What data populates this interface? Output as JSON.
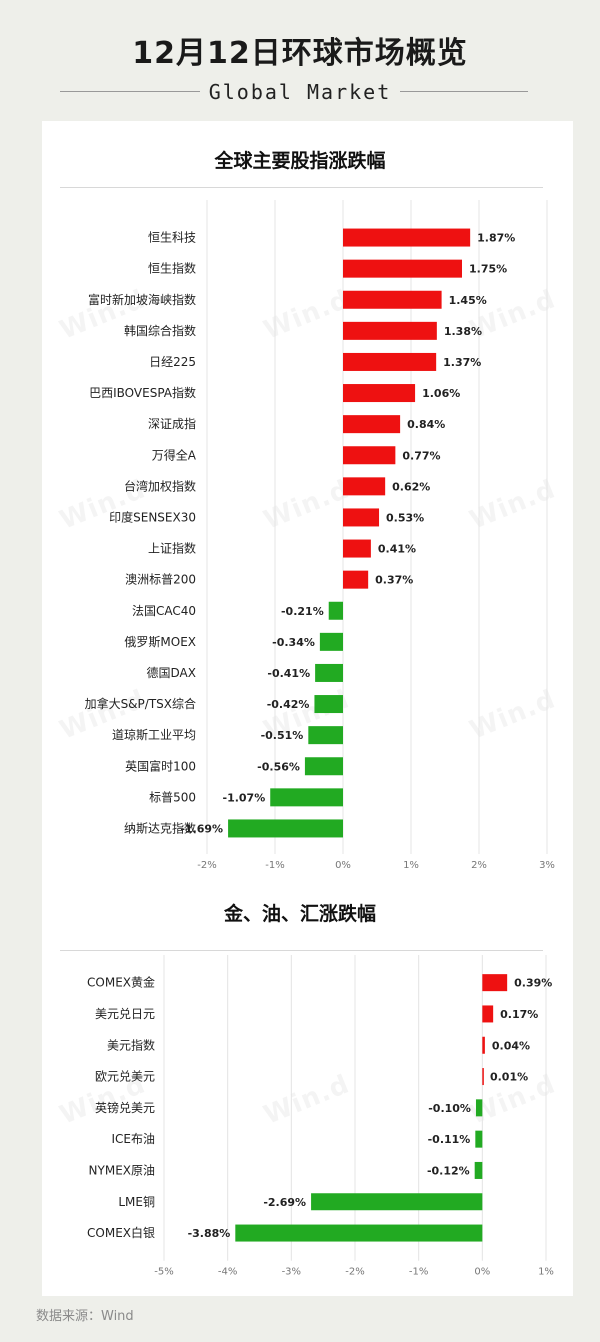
{
  "header": {
    "title": "12月12日环球市场概览",
    "subtitle": "Global Market"
  },
  "sections": {
    "stocks_title": "全球主要股指涨跌幅",
    "commodities_title": "金、油、汇涨跌幅"
  },
  "watermark": "Win.d",
  "source": "数据来源：Wind",
  "colors": {
    "up": "#ee1111",
    "down": "#22aa22",
    "background": "#eeefea",
    "card": "#ffffff"
  },
  "chart_data": [
    {
      "type": "bar",
      "orientation": "horizontal",
      "title": "全球主要股指涨跌幅",
      "categories": [
        "恒生科技",
        "恒生指数",
        "富时新加坡海峡指数",
        "韩国综合指数",
        "日经225",
        "巴西IBOVESPA指数",
        "深证成指",
        "万得全A",
        "台湾加权指数",
        "印度SENSEX30",
        "上证指数",
        "澳洲标普200",
        "法国CAC40",
        "俄罗斯MOEX",
        "德国DAX",
        "加拿大S&P/TSX综合",
        "道琼斯工业平均",
        "英国富时100",
        "标普500",
        "纳斯达克指数"
      ],
      "values": [
        1.87,
        1.75,
        1.45,
        1.38,
        1.37,
        1.06,
        0.84,
        0.77,
        0.62,
        0.53,
        0.41,
        0.37,
        -0.21,
        -0.34,
        -0.41,
        -0.42,
        -0.51,
        -0.56,
        -1.07,
        -1.69
      ],
      "value_labels": [
        "1.87%",
        "1.75%",
        "1.45%",
        "1.38%",
        "1.37%",
        "1.06%",
        "0.84%",
        "0.77%",
        "0.62%",
        "0.53%",
        "0.41%",
        "0.37%",
        "-0.21%",
        "-0.34%",
        "-0.41%",
        "-0.42%",
        "-0.51%",
        "-0.56%",
        "-1.07%",
        "-1.69%"
      ],
      "xlim": [
        -2,
        3
      ],
      "ticks": [
        "-2%",
        "-1%",
        "0%",
        "1%",
        "2%",
        "3%"
      ],
      "grid": true
    },
    {
      "type": "bar",
      "orientation": "horizontal",
      "title": "金、油、汇涨跌幅",
      "categories": [
        "COMEX黄金",
        "美元兑日元",
        "美元指数",
        "欧元兑美元",
        "英镑兑美元",
        "ICE布油",
        "NYMEX原油",
        "LME铜",
        "COMEX白银"
      ],
      "values": [
        0.39,
        0.17,
        0.04,
        0.01,
        -0.1,
        -0.11,
        -0.12,
        -2.69,
        -3.88
      ],
      "value_labels": [
        "0.39%",
        "0.17%",
        "0.04%",
        "0.01%",
        "-0.10%",
        "-0.11%",
        "-0.12%",
        "-2.69%",
        "-3.88%"
      ],
      "xlim": [
        -5,
        1
      ],
      "ticks": [
        "-5%",
        "-4%",
        "-3%",
        "-2%",
        "-1%",
        "0%",
        "1%"
      ],
      "grid": true
    }
  ]
}
